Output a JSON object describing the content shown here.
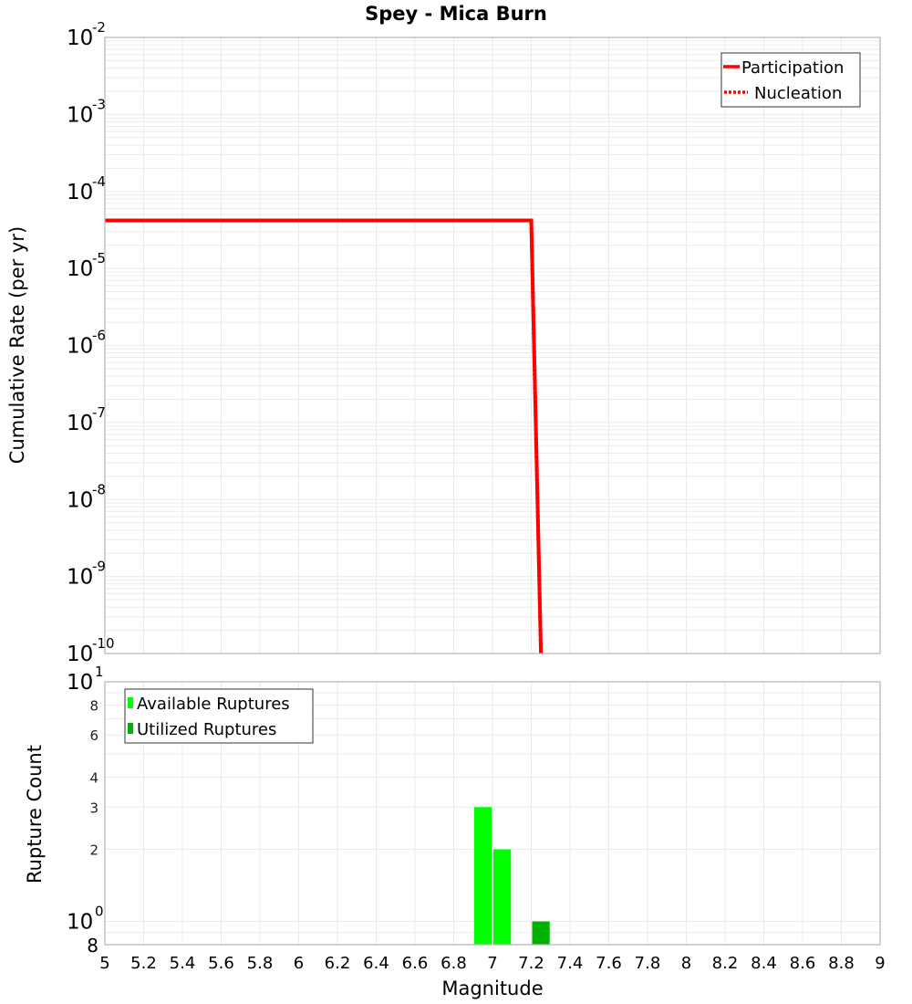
{
  "title": "Spey - Mica Burn",
  "colors": {
    "participation": "#ff0000",
    "nucleation": "#ff0000",
    "available": "#00ff00",
    "utilized": "#00b300",
    "grid": "#ebebeb",
    "frame": "#b3b3b3"
  },
  "top_plot": {
    "ylabel": "Cumulative Rate (per yr)",
    "y_ticks": [
      {
        "base": "10",
        "exp": "-2"
      },
      {
        "base": "10",
        "exp": "-3"
      },
      {
        "base": "10",
        "exp": "-4"
      },
      {
        "base": "10",
        "exp": "-5"
      },
      {
        "base": "10",
        "exp": "-6"
      },
      {
        "base": "10",
        "exp": "-7"
      },
      {
        "base": "10",
        "exp": "-8"
      },
      {
        "base": "10",
        "exp": "-9"
      },
      {
        "base": "10",
        "exp": "-10"
      }
    ],
    "legend": [
      {
        "label": "Participation",
        "style": "solid"
      },
      {
        "label": "Nucleation",
        "style": "dotted"
      }
    ]
  },
  "bottom_plot": {
    "ylabel": "Rupture Count",
    "xlabel": "Magnitude",
    "y_ticks_major": [
      {
        "base": "10",
        "exp": "1"
      },
      {
        "base": "10",
        "exp": "0"
      }
    ],
    "y_ticks_minor": [
      "8",
      "6",
      "4",
      "3",
      "2",
      "8"
    ],
    "x_ticks": [
      "5",
      "5.2",
      "5.4",
      "5.6",
      "5.8",
      "6",
      "6.2",
      "6.4",
      "6.6",
      "6.8",
      "7",
      "7.2",
      "7.4",
      "7.6",
      "7.8",
      "8",
      "8.2",
      "8.4",
      "8.6",
      "8.8",
      "9"
    ],
    "legend": [
      {
        "label": "Available Ruptures"
      },
      {
        "label": "Utilized Ruptures"
      }
    ]
  },
  "chart_data": [
    {
      "type": "line",
      "title": "Spey - Mica Burn",
      "xlabel": "Magnitude",
      "ylabel": "Cumulative Rate (per yr)",
      "xlim": [
        5,
        9
      ],
      "ylim": [
        1e-10,
        0.01
      ],
      "yscale": "log",
      "grid": true,
      "legend_position": "top-right",
      "series": [
        {
          "name": "Participation",
          "style": "solid",
          "color": "#ff0000",
          "x": [
            5.0,
            7.2,
            7.25
          ],
          "y": [
            4.2e-05,
            4.2e-05,
            1e-10
          ]
        },
        {
          "name": "Nucleation",
          "style": "dotted",
          "color": "#ff0000",
          "x": [
            5.0,
            7.2,
            7.25
          ],
          "y": [
            4.2e-05,
            4.2e-05,
            1e-10
          ]
        }
      ]
    },
    {
      "type": "bar",
      "xlabel": "Magnitude",
      "ylabel": "Rupture Count",
      "xlim": [
        5,
        9
      ],
      "ylim": [
        0.8,
        10
      ],
      "yscale": "log",
      "grid": true,
      "legend_position": "top-left",
      "x_ticks": [
        5,
        5.2,
        5.4,
        5.6,
        5.8,
        6,
        6.2,
        6.4,
        6.6,
        6.8,
        7,
        7.2,
        7.4,
        7.6,
        7.8,
        8,
        8.2,
        8.4,
        8.6,
        8.8,
        9
      ],
      "series": [
        {
          "name": "Available Ruptures",
          "color": "#00ff00",
          "bins": [
            {
              "x0": 6.9,
              "x1": 7.0,
              "value": 3
            },
            {
              "x0": 7.0,
              "x1": 7.1,
              "value": 2
            }
          ]
        },
        {
          "name": "Utilized Ruptures",
          "color": "#00b300",
          "bins": [
            {
              "x0": 7.2,
              "x1": 7.3,
              "value": 1
            }
          ]
        }
      ]
    }
  ]
}
